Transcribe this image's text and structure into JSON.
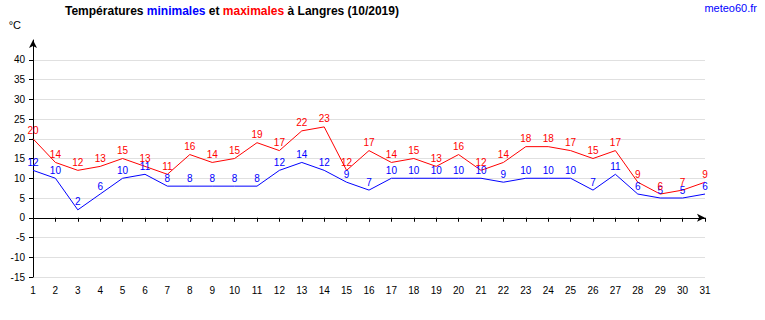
{
  "chart_data": {
    "type": "line",
    "title": "Températures minimales et maximales à Langres (10/2019)",
    "y_label": "°C",
    "source": "meteo60.fr",
    "categories": [
      "1",
      "2",
      "3",
      "4",
      "5",
      "6",
      "7",
      "8",
      "9",
      "10",
      "11",
      "12",
      "13",
      "14",
      "15",
      "16",
      "17",
      "18",
      "19",
      "20",
      "21",
      "22",
      "23",
      "24",
      "25",
      "26",
      "27",
      "28",
      "29",
      "30",
      "31"
    ],
    "series": [
      {
        "name": "minimales",
        "color": "#0000ff",
        "values": [
          12,
          10,
          2,
          6,
          10,
          11,
          8,
          8,
          8,
          8,
          8,
          12,
          14,
          12,
          9,
          7,
          10,
          10,
          10,
          10,
          10,
          9,
          10,
          10,
          10,
          7,
          11,
          6,
          5,
          5,
          6
        ]
      },
      {
        "name": "maximales",
        "color": "#ff0000",
        "values": [
          20,
          14,
          12,
          13,
          15,
          13,
          11,
          16,
          14,
          15,
          19,
          17,
          22,
          23,
          12,
          17,
          14,
          15,
          13,
          16,
          12,
          14,
          18,
          18,
          17,
          15,
          17,
          9,
          6,
          7,
          9
        ]
      }
    ],
    "ylim": [
      -15,
      45
    ],
    "yticks": [
      -15,
      -10,
      -5,
      0,
      5,
      10,
      15,
      20,
      25,
      30,
      35,
      40
    ],
    "grid": true,
    "data_labels": true
  }
}
